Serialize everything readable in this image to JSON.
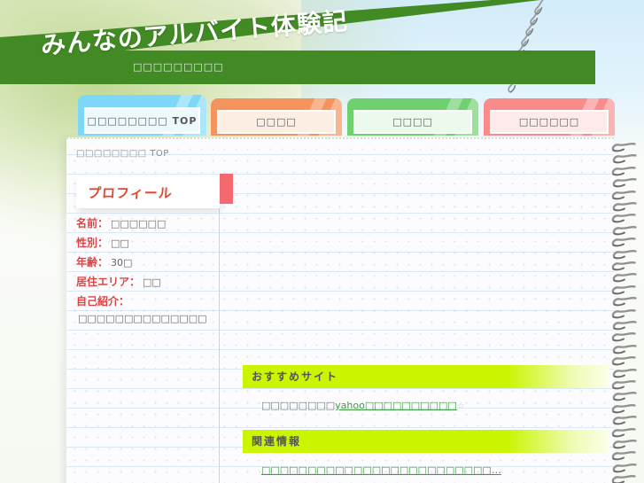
{
  "header": {
    "title": "みんなのアルバイト体験記",
    "subtitle": "□□□□□□□□□"
  },
  "tabs": [
    {
      "label": "□□□□□□□□ TOP",
      "active": true
    },
    {
      "label": "□□□□",
      "active": false
    },
    {
      "label": "□□□□",
      "active": false
    },
    {
      "label": "□□□□□□",
      "active": false
    }
  ],
  "breadcrumb": {
    "label": "□□□□□□□□ TOP"
  },
  "profile": {
    "heading": "プロフィール",
    "fields": [
      {
        "label": "名前：",
        "value": "□□□□□□"
      },
      {
        "label": "性別：",
        "value": "□□"
      },
      {
        "label": "年齢：",
        "value": "30□"
      },
      {
        "label": "居住エリア：",
        "value": "□□"
      },
      {
        "label": "自己紹介：",
        "value": ""
      }
    ],
    "intro": "□□□□□□□□□□□□□□"
  },
  "sections": {
    "recommended": {
      "heading": "おすすめサイト",
      "text_before_link": "□□□□□□□□",
      "link_text": "yahoo□□□□□□□□□□",
      "text_after_link": "☆"
    },
    "related": {
      "heading": "関連情報",
      "link_text": "□□□□□□□□□□□□□□□□□□□□□□□□□…"
    }
  },
  "colors": {
    "header_green": "#418A24",
    "tab_blue": "#7ED7F7",
    "tab_orange": "#F5935C",
    "tab_green": "#6ED06E",
    "tab_red": "#F98B8B",
    "highlight_chartreuse": "#C9F500",
    "link_green": "#3E9B3E",
    "label_red": "#DD4343",
    "bookmark_red": "#F4696F",
    "ruled_line_blue": "#DBE9F6",
    "margin_line_pink": "#F0C5C5"
  }
}
